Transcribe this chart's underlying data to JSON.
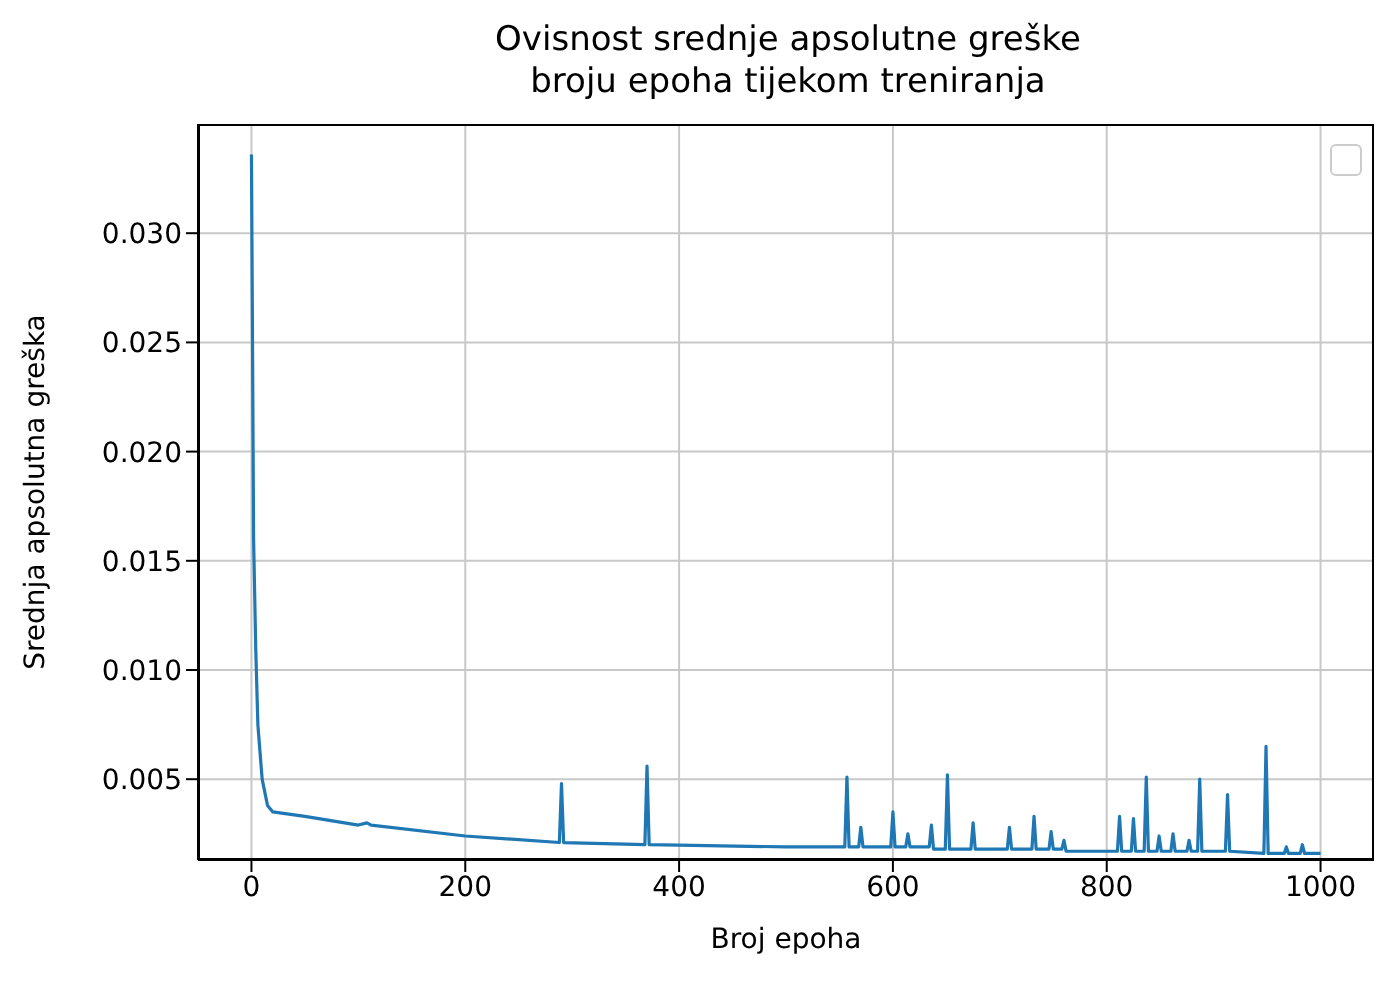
{
  "chart_data": {
    "type": "line",
    "title": "Ovisnost srednje apsolutne greške\nbroju epoha tijekom treniranja",
    "xlabel": "Broj epoha",
    "ylabel": "Srednja apsolutna greška",
    "xlim": [
      -50,
      1050
    ],
    "xticks": [
      0,
      200,
      400,
      600,
      800,
      1000
    ],
    "ylim": [
      0.0013,
      0.035
    ],
    "yticks": [
      0.005,
      {
        "value": 0.01,
        "label": "0.010"
      },
      0.015,
      {
        "value": 0.02,
        "label": "0.020"
      },
      0.025,
      {
        "value": 0.03,
        "label": "0.030"
      }
    ],
    "grid": true,
    "series": [
      {
        "color": "#1f77b4",
        "x": [
          0,
          1,
          2,
          4,
          6,
          10,
          15,
          20,
          50,
          100,
          108,
          112,
          200,
          288,
          290,
          292,
          368,
          370,
          372,
          500,
          555,
          557,
          559,
          568,
          570,
          572,
          598,
          600,
          602,
          612,
          614,
          616,
          634,
          636,
          638,
          649,
          651,
          653,
          673,
          675,
          677,
          707,
          709,
          711,
          730,
          732,
          734,
          746,
          748,
          750,
          758,
          760,
          762,
          810,
          812,
          814,
          823,
          825,
          827,
          835,
          837,
          839,
          847,
          849,
          851,
          860,
          862,
          864,
          875,
          877,
          879,
          885,
          887,
          889,
          911,
          913,
          915,
          947,
          949,
          951,
          966,
          968,
          970,
          981,
          983,
          985,
          1000
        ],
        "values": [
          0.0336,
          0.025,
          0.016,
          0.011,
          0.0075,
          0.005,
          0.0038,
          0.0035,
          0.0033,
          0.0029,
          0.003,
          0.0029,
          0.0024,
          0.0021,
          0.0048,
          0.0021,
          0.002,
          0.0056,
          0.002,
          0.0019,
          0.0019,
          0.0051,
          0.0019,
          0.0019,
          0.0028,
          0.0019,
          0.0019,
          0.0035,
          0.0019,
          0.0019,
          0.0025,
          0.0019,
          0.0019,
          0.0029,
          0.0018,
          0.0018,
          0.0052,
          0.0018,
          0.0018,
          0.003,
          0.0018,
          0.0018,
          0.0028,
          0.0018,
          0.0018,
          0.0033,
          0.0018,
          0.0018,
          0.0026,
          0.0018,
          0.0018,
          0.0022,
          0.0017,
          0.0017,
          0.0033,
          0.0017,
          0.0017,
          0.0032,
          0.0017,
          0.0017,
          0.0051,
          0.0017,
          0.0017,
          0.0024,
          0.0017,
          0.0017,
          0.0025,
          0.0017,
          0.0017,
          0.0022,
          0.0017,
          0.0017,
          0.005,
          0.0017,
          0.0017,
          0.0043,
          0.0017,
          0.0016,
          0.0065,
          0.0016,
          0.0016,
          0.0019,
          0.0016,
          0.0016,
          0.002,
          0.0016,
          0.0016
        ]
      }
    ]
  }
}
